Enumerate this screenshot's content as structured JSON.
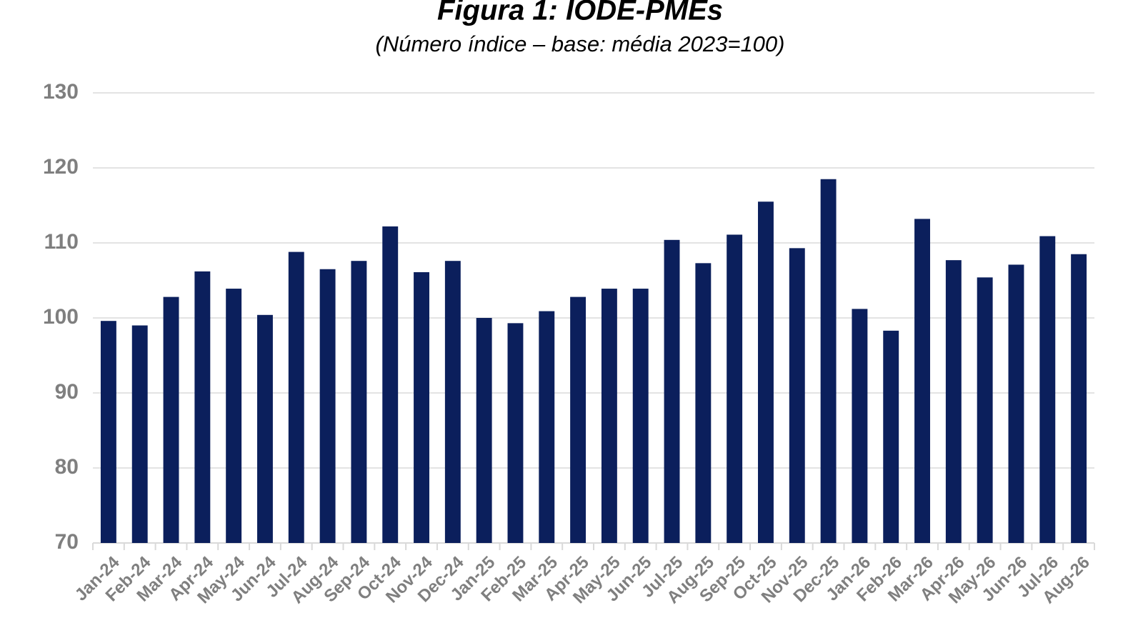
{
  "chart_data": {
    "type": "bar",
    "title": "Figura 1: IODE-PMEs",
    "subtitle": "(Número índice – base: média 2023=100)",
    "categories": [
      "Jan-24",
      "Feb-24",
      "Mar-24",
      "Apr-24",
      "May-24",
      "Jun-24",
      "Jul-24",
      "Aug-24",
      "Sep-24",
      "Oct-24",
      "Nov-24",
      "Dec-24",
      "Jan-25",
      "Feb-25",
      "Mar-25",
      "Apr-25",
      "May-25",
      "Jun-25",
      "Jul-25",
      "Aug-25",
      "Sep-25",
      "Oct-25",
      "Nov-25",
      "Dec-25",
      "Jan-26",
      "Feb-26",
      "Mar-26",
      "Apr-26",
      "May-26",
      "Jun-26",
      "Jul-26",
      "Aug-26"
    ],
    "values": [
      99.6,
      99.0,
      102.8,
      106.2,
      103.9,
      100.4,
      108.8,
      106.5,
      107.6,
      112.2,
      106.1,
      107.6,
      100.0,
      99.3,
      100.9,
      102.8,
      103.9,
      103.9,
      110.4,
      107.3,
      111.1,
      115.5,
      109.3,
      118.5,
      101.2,
      98.3,
      113.2,
      107.7,
      105.4,
      107.1,
      110.9,
      108.5
    ],
    "color": "#0b1f5c",
    "ylim": [
      70,
      130
    ],
    "yticks": [
      70,
      80,
      90,
      100,
      110,
      120,
      130
    ],
    "grid": true
  }
}
